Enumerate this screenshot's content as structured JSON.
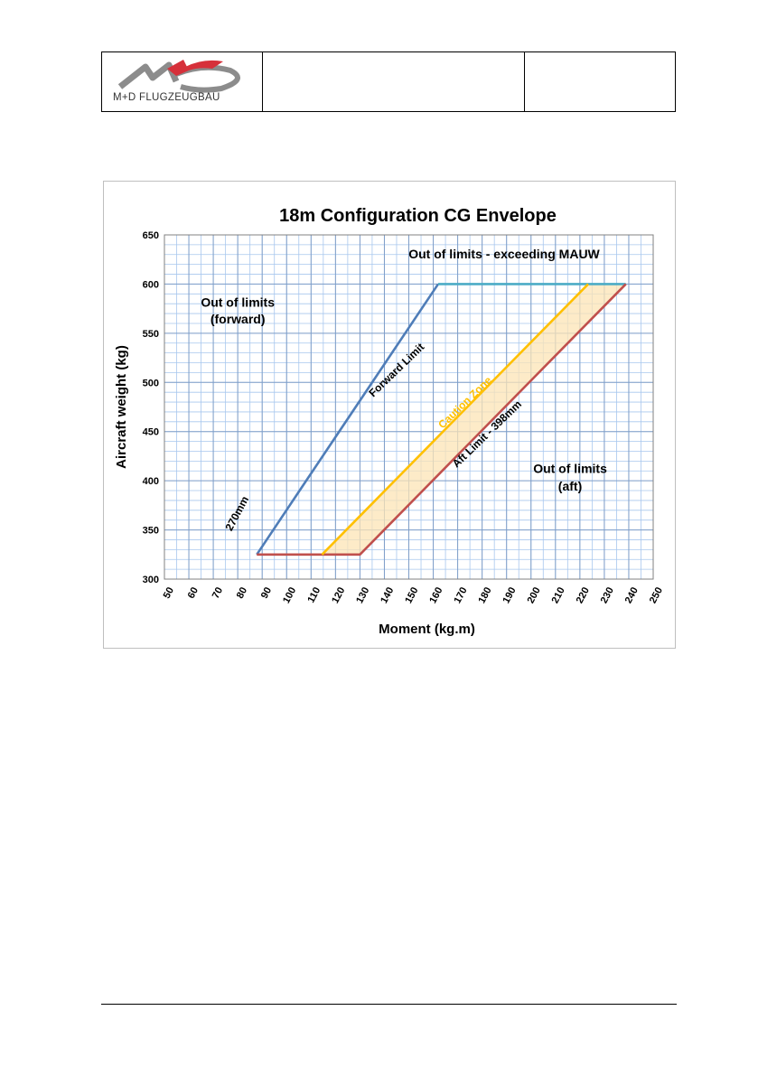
{
  "logo": {
    "text": "M+D FLUGZEUGBAU",
    "mark_color": "#d6303a",
    "swoosh_color": "#8c8c8c"
  },
  "header": {
    "middle_text": "",
    "right_text": ""
  },
  "chart_data": {
    "type": "line",
    "title": "18m Configuration CG Envelope",
    "xlabel": "Moment (kg.m)",
    "ylabel": "Aircraft weight (kg)",
    "xlim": [
      50,
      250
    ],
    "ylim": [
      300,
      650
    ],
    "xticks": [
      50,
      60,
      70,
      80,
      90,
      100,
      110,
      120,
      130,
      140,
      150,
      160,
      170,
      180,
      190,
      200,
      210,
      220,
      230,
      240,
      250
    ],
    "yticks": [
      300,
      350,
      400,
      450,
      500,
      550,
      600,
      650
    ],
    "grid": true,
    "series": [
      {
        "color": "#4f7db8",
        "x": [
          87.8,
          108,
          162
        ],
        "y": [
          325,
          400,
          600
        ]
      },
      {
        "color": "#4bacc6",
        "x": [
          162,
          238.8
        ],
        "y": [
          600,
          600
        ]
      },
      {
        "color": "#c0504d",
        "x": [
          87.8,
          130,
          238.8
        ],
        "y": [
          325,
          325,
          600
        ]
      },
      {
        "color": "#ffc000",
        "x": [
          114.5,
          223.4
        ],
        "y": [
          325,
          600
        ]
      }
    ],
    "caution_fill": {
      "color": "#fce4b6",
      "x": [
        114.5,
        130,
        238.8,
        223.4
      ],
      "y": [
        325,
        325,
        600,
        600
      ]
    },
    "annotations": [
      {
        "text": "Out of limits - exceeding MAUW",
        "x": 189,
        "y": 626
      },
      {
        "text": "Out of limits",
        "x": 80,
        "y": 577
      },
      {
        "text": "(forward)",
        "x": 80,
        "y": 560
      },
      {
        "text": "Forward Limit",
        "x": 146,
        "y": 510,
        "rotate": -44,
        "color": "#000000"
      },
      {
        "text": "Caution Zone",
        "x": 174,
        "y": 477,
        "rotate": -44,
        "color": "#ffc000"
      },
      {
        "text": "Aft Limit - 398mm",
        "x": 183,
        "y": 445,
        "rotate": -44,
        "color": "#000000"
      },
      {
        "text": "Out of limits",
        "x": 216,
        "y": 408
      },
      {
        "text": "(aft)",
        "x": 216,
        "y": 390
      },
      {
        "text": "270mm",
        "x": 81,
        "y": 365,
        "rotate": -62,
        "color": "#000000"
      }
    ]
  }
}
